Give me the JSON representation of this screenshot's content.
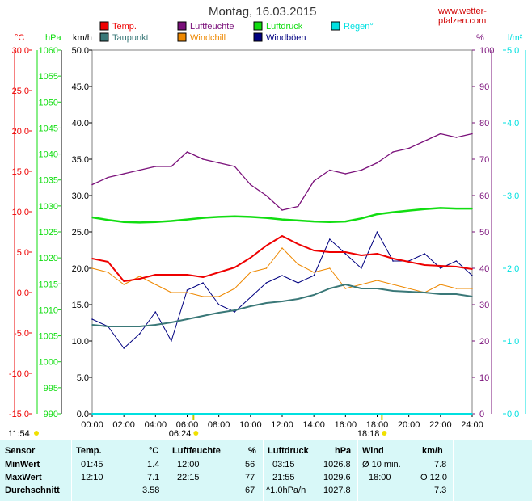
{
  "header": {
    "title": "Montag, 16.03.2015",
    "site": "www.wetter-pfalzen.com"
  },
  "axes": {
    "unit_left": [
      "°C",
      "hPa",
      "km/h"
    ],
    "unit_right": [
      "%",
      "l/m²"
    ],
    "temp_ticks": [
      "30.0",
      "25.0",
      "20.0",
      "15.0",
      "10.0",
      "5.0",
      "0.0",
      "-5.0",
      "-10.0",
      "-15.0"
    ],
    "press_ticks": [
      "1060",
      "1055",
      "1050",
      "1045",
      "1040",
      "1035",
      "1030",
      "1025",
      "1020",
      "1015",
      "1010",
      "1005",
      "1000",
      "995",
      "990"
    ],
    "wind_ticks": [
      "50.0",
      "45.0",
      "40.0",
      "35.0",
      "30.0",
      "25.0",
      "20.0",
      "15.0",
      "10.0",
      "5.0",
      "0.0"
    ],
    "hum_ticks": [
      "100",
      "90",
      "80",
      "70",
      "60",
      "50",
      "40",
      "30",
      "20",
      "10",
      "0"
    ],
    "rain_ticks": [
      "5.0",
      "4.0",
      "3.0",
      "2.0",
      "1.0",
      "0.0"
    ],
    "time_ticks": [
      "00:00",
      "02:00",
      "04:00",
      "06:00",
      "08:00",
      "10:00",
      "12:00",
      "14:00",
      "16:00",
      "18:00",
      "20:00",
      "22:00",
      "24:00"
    ],
    "sunrise": "06:24",
    "sunset": "18:18",
    "daylight": "11:54"
  },
  "colors": {
    "temp": "#ee0000",
    "dew": "#3a7878",
    "humidity": "#7a107a",
    "windchill": "#ee8800",
    "pressure": "#11dd11",
    "gust": "#000080",
    "rain": "#00e0e0"
  },
  "chart_data": {
    "type": "line",
    "title": "Montag, 16.03.2015",
    "x": [
      "00:00",
      "01:00",
      "02:00",
      "03:00",
      "04:00",
      "05:00",
      "06:00",
      "07:00",
      "08:00",
      "09:00",
      "10:00",
      "11:00",
      "12:00",
      "13:00",
      "14:00",
      "15:00",
      "16:00",
      "17:00",
      "18:00",
      "19:00",
      "20:00",
      "21:00",
      "22:00",
      "23:00",
      "24:00"
    ],
    "series": [
      {
        "name": "Temp.",
        "axis": "temp",
        "values": [
          4.2,
          3.8,
          1.4,
          1.7,
          2.2,
          2.2,
          2.2,
          1.9,
          2.5,
          3.1,
          4.3,
          5.8,
          7.0,
          6.0,
          5.2,
          5.0,
          5.0,
          4.6,
          4.8,
          4.2,
          3.8,
          3.4,
          3.3,
          3.2,
          2.9
        ]
      },
      {
        "name": "Taupunkt",
        "axis": "temp",
        "values": [
          -4.0,
          -4.2,
          -4.2,
          -4.2,
          -4.0,
          -3.7,
          -3.3,
          -2.9,
          -2.5,
          -2.2,
          -1.7,
          -1.3,
          -1.1,
          -0.8,
          -0.3,
          0.5,
          1.0,
          0.5,
          0.5,
          0.2,
          0.1,
          0.0,
          -0.2,
          -0.2,
          -0.5
        ]
      },
      {
        "name": "Luftfeuchte",
        "axis": "hum",
        "values": [
          63,
          65,
          66,
          67,
          68,
          68,
          72,
          70,
          69,
          68,
          63,
          60,
          56,
          57,
          64,
          67,
          66,
          67,
          69,
          72,
          73,
          75,
          77,
          76,
          77
        ]
      },
      {
        "name": "Windchill",
        "axis": "temp",
        "values": [
          3.0,
          2.5,
          1.0,
          2.0,
          1.0,
          0.0,
          0.0,
          -0.5,
          -0.5,
          0.5,
          2.5,
          3.0,
          5.5,
          3.5,
          2.5,
          3.0,
          0.5,
          1.0,
          1.5,
          1.0,
          0.5,
          0.0,
          1.0,
          0.5,
          0.5
        ]
      },
      {
        "name": "Luftdruck",
        "axis": "press",
        "values": [
          1027.8,
          1027.3,
          1026.9,
          1026.8,
          1026.9,
          1027.1,
          1027.4,
          1027.7,
          1027.9,
          1028.0,
          1027.9,
          1027.7,
          1027.4,
          1027.2,
          1027.0,
          1026.9,
          1027.0,
          1027.6,
          1028.4,
          1028.8,
          1029.1,
          1029.4,
          1029.6,
          1029.5,
          1029.5
        ]
      },
      {
        "name": "Windböen",
        "axis": "wind",
        "values": [
          13,
          12,
          9,
          11,
          14,
          10,
          17,
          18,
          15,
          14,
          16,
          18,
          19,
          18,
          19,
          24,
          22,
          20,
          25,
          21,
          21,
          22,
          20,
          21,
          19
        ]
      },
      {
        "name": "Regen°",
        "axis": "rain",
        "values": [
          0,
          0,
          0,
          0,
          0,
          0,
          0,
          0,
          0,
          0,
          0,
          0,
          0,
          0,
          0,
          0,
          0,
          0,
          0,
          0,
          0,
          0,
          0,
          0,
          0
        ]
      }
    ],
    "ylim_temp": [
      -15,
      30
    ],
    "ylim_press": [
      990,
      1060
    ],
    "ylim_wind": [
      0,
      50
    ],
    "ylim_hum": [
      0,
      100
    ],
    "ylim_rain": [
      0,
      5
    ],
    "xlim": [
      "00:00",
      "24:00"
    ],
    "grid": false,
    "legend": "top"
  },
  "stats": {
    "headers": [
      "Sensor",
      "Temp.",
      "°C",
      "Luftfeuchte",
      "%",
      "Luftdruck",
      "hPa",
      "Wind",
      "km/h"
    ],
    "rows": [
      {
        "label": "MinWert",
        "t_time": "01:45",
        "t_val": "1.4",
        "h_time": "12:00",
        "h_val": "56",
        "p_time": "03:15",
        "p_val": "1026.8",
        "w_time": "Ø 10 min.",
        "w_val": "7.8"
      },
      {
        "label": "MaxWert",
        "t_time": "12:10",
        "t_val": "7.1",
        "h_time": "22:15",
        "h_val": "77",
        "p_time": "21:55",
        "p_val": "1029.6",
        "w_time": "18:00",
        "w_val": "O 12.0"
      },
      {
        "label": "Durchschnitt",
        "t_time": "",
        "t_val": "3.58",
        "h_time": "",
        "h_val": "67",
        "p_time": "^1.0hPa/h",
        "p_val": "1027.8",
        "w_time": "",
        "w_val": "7.3"
      }
    ]
  }
}
